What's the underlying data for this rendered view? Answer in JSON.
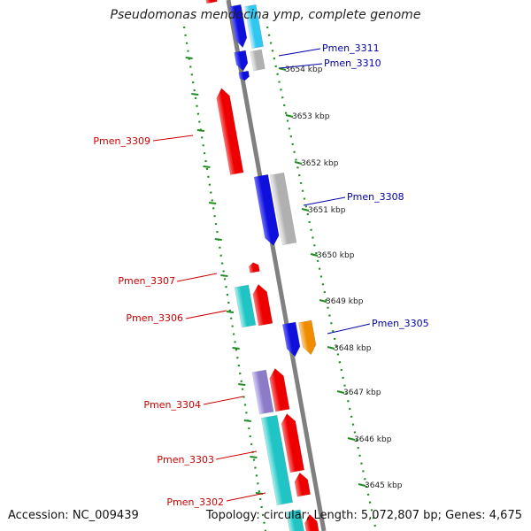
{
  "title": "Pseudomonas mendocina ymp, complete genome",
  "footer": {
    "accession": "Accession: NC_009439",
    "topology": "Topology: circular; Length: 5,072,807 bp; Genes: 4,675"
  },
  "colors": {
    "forward_gene": "#ff0000",
    "reverse_gene": "#0000ff",
    "cyan_feature": "#1ecece",
    "gray_feature": "#bbbbbb",
    "orange_feature": "#ff9900",
    "backbone": "#808080",
    "ticks": "#228b22",
    "label_red": "#cc0000",
    "label_blue": "#0000aa"
  },
  "ticks": [
    {
      "label": "3654 kbp"
    },
    {
      "label": "3653 kbp"
    },
    {
      "label": "3652 kbp"
    },
    {
      "label": "3651 kbp"
    },
    {
      "label": "3650 kbp"
    },
    {
      "label": "3649 kbp"
    },
    {
      "label": "3648 kbp"
    },
    {
      "label": "3647 kbp"
    },
    {
      "label": "3646 kbp"
    },
    {
      "label": "3645 kbp"
    }
  ],
  "genes": [
    {
      "name": "Pmen_3311",
      "strand": "reverse",
      "color": "blue"
    },
    {
      "name": "Pmen_3310",
      "strand": "reverse",
      "color": "blue"
    },
    {
      "name": "Pmen_3309",
      "strand": "forward",
      "color": "red"
    },
    {
      "name": "Pmen_3308",
      "strand": "reverse",
      "color": "blue"
    },
    {
      "name": "Pmen_3307",
      "strand": "forward",
      "color": "red"
    },
    {
      "name": "Pmen_3306",
      "strand": "forward",
      "color": "red"
    },
    {
      "name": "Pmen_3305",
      "strand": "reverse",
      "color": "blue"
    },
    {
      "name": "Pmen_3304",
      "strand": "forward",
      "color": "red"
    },
    {
      "name": "Pmen_3303",
      "strand": "forward",
      "color": "red"
    },
    {
      "name": "Pmen_3302",
      "strand": "forward",
      "color": "red"
    }
  ]
}
